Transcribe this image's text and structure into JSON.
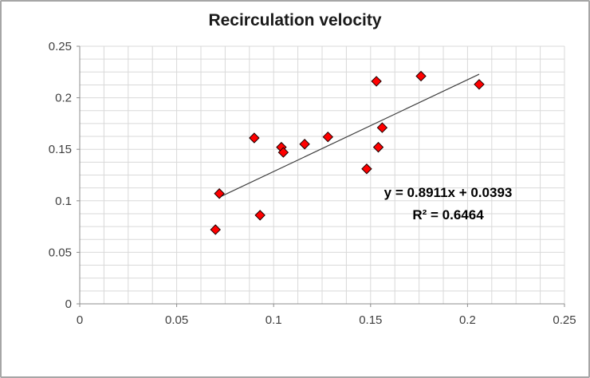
{
  "chart": {
    "title": "Recirculation velocity",
    "annotation": {
      "equation": "y = 0.8911x + 0.0393",
      "r_squared": "R² = 0.6464"
    },
    "colors": {
      "marker_fill": "#ff0000",
      "marker_stroke": "#1a0000",
      "gridline": "#d9d9d9",
      "axis_line": "#8c8c8c",
      "trendline": "#3f3f3f",
      "tick_text": "#3f3f3f",
      "frame_border": "#a6a6a6"
    }
  },
  "chart_data": {
    "type": "scatter",
    "title": "Recirculation velocity",
    "xlabel": "",
    "ylabel": "",
    "xlim": [
      0,
      0.25
    ],
    "ylim": [
      0,
      0.25
    ],
    "x_tick_unit": 0.05,
    "y_tick_unit": 0.05,
    "minor_grid_unit": 0.0125,
    "grid": true,
    "legend": "none",
    "series": [
      {
        "name": "Recirculation velocity",
        "marker": "diamond",
        "points": [
          [
            0.07,
            0.072
          ],
          [
            0.072,
            0.107
          ],
          [
            0.09,
            0.161
          ],
          [
            0.093,
            0.086
          ],
          [
            0.104,
            0.152
          ],
          [
            0.105,
            0.147
          ],
          [
            0.116,
            0.155
          ],
          [
            0.128,
            0.162
          ],
          [
            0.148,
            0.131
          ],
          [
            0.153,
            0.216
          ],
          [
            0.154,
            0.152
          ],
          [
            0.156,
            0.171
          ],
          [
            0.176,
            0.221
          ],
          [
            0.206,
            0.213
          ]
        ]
      }
    ],
    "trendline": {
      "type": "linear",
      "slope": 0.8911,
      "intercept": 0.0393,
      "x_start": 0.072,
      "x_end": 0.206,
      "equation": "y = 0.8911x + 0.0393",
      "r2": 0.6464
    }
  }
}
